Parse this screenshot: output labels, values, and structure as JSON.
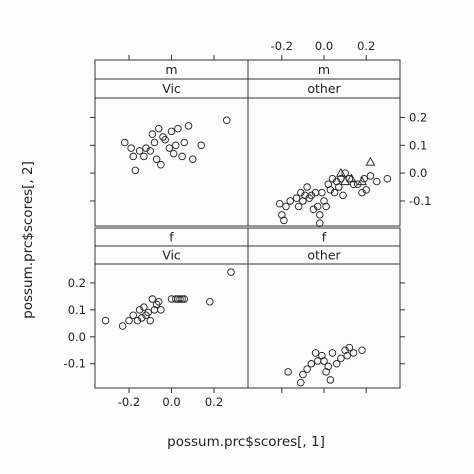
{
  "chart_data": {
    "type": "scatter",
    "xlabel": "possum.prc$scores[, 1]",
    "ylabel": "possum.prc$scores[, 2]",
    "xlim": [
      -0.36,
      0.36
    ],
    "ylim": [
      -0.19,
      0.27
    ],
    "x_ticks": [
      -0.2,
      0.0,
      0.2
    ],
    "x_tick_labels": [
      "-0.2",
      "0.0",
      "0.2"
    ],
    "y_ticks": [
      -0.1,
      0.0,
      0.1,
      0.2
    ],
    "y_tick_labels": [
      "-0.1",
      "0.0",
      "0.1",
      "0.2"
    ],
    "grid": false,
    "layout": "2x2 trellis",
    "panels": [
      {
        "strips": [
          "m",
          "Vic"
        ],
        "markers": [
          {
            "shape": "circle",
            "points": [
              [
                -0.22,
                0.11
              ],
              [
                -0.19,
                0.09
              ],
              [
                -0.18,
                0.06
              ],
              [
                -0.17,
                0.01
              ],
              [
                -0.15,
                0.08
              ],
              [
                -0.13,
                0.06
              ],
              [
                -0.12,
                0.09
              ],
              [
                -0.1,
                0.08
              ],
              [
                -0.09,
                0.14
              ],
              [
                -0.08,
                0.11
              ],
              [
                -0.07,
                0.05
              ],
              [
                -0.06,
                0.16
              ],
              [
                -0.05,
                0.03
              ],
              [
                -0.04,
                0.13
              ],
              [
                -0.03,
                0.12
              ],
              [
                -0.01,
                0.09
              ],
              [
                0.0,
                0.15
              ],
              [
                0.01,
                0.07
              ],
              [
                0.02,
                0.1
              ],
              [
                0.03,
                0.16
              ],
              [
                0.05,
                0.06
              ],
              [
                0.06,
                0.11
              ],
              [
                0.08,
                0.17
              ],
              [
                0.1,
                0.05
              ],
              [
                0.14,
                0.1
              ],
              [
                0.26,
                0.19
              ]
            ]
          }
        ]
      },
      {
        "strips": [
          "m",
          "other"
        ],
        "markers": [
          {
            "shape": "circle",
            "points": [
              [
                -0.21,
                -0.11
              ],
              [
                -0.2,
                -0.15
              ],
              [
                -0.19,
                -0.17
              ],
              [
                -0.18,
                -0.12
              ],
              [
                -0.16,
                -0.1
              ],
              [
                -0.13,
                -0.09
              ],
              [
                -0.12,
                -0.12
              ],
              [
                -0.11,
                -0.07
              ],
              [
                -0.1,
                -0.1
              ],
              [
                -0.09,
                -0.08
              ],
              [
                -0.08,
                -0.05
              ],
              [
                -0.07,
                -0.09
              ],
              [
                -0.06,
                -0.08
              ],
              [
                -0.05,
                -0.13
              ],
              [
                -0.04,
                -0.07
              ],
              [
                -0.03,
                -0.12
              ],
              [
                -0.02,
                -0.18
              ],
              [
                -0.02,
                -0.15
              ],
              [
                -0.01,
                -0.07
              ],
              [
                0.0,
                -0.1
              ],
              [
                0.01,
                -0.12
              ],
              [
                0.02,
                -0.04
              ],
              [
                0.03,
                -0.06
              ],
              [
                0.04,
                -0.02
              ],
              [
                0.05,
                -0.07
              ],
              [
                0.06,
                -0.03
              ],
              [
                0.07,
                -0.05
              ],
              [
                0.08,
                -0.02
              ],
              [
                0.09,
                -0.08
              ],
              [
                0.1,
                0.0
              ],
              [
                0.12,
                -0.02
              ],
              [
                0.14,
                -0.04
              ],
              [
                0.16,
                -0.04
              ],
              [
                0.18,
                -0.07
              ],
              [
                0.19,
                -0.02
              ],
              [
                0.2,
                -0.06
              ],
              [
                0.22,
                -0.01
              ],
              [
                0.25,
                -0.03
              ],
              [
                0.3,
                -0.02
              ]
            ]
          },
          {
            "shape": "triangle",
            "points": [
              [
                0.08,
                0.0
              ],
              [
                0.1,
                -0.03
              ],
              [
                0.13,
                -0.02
              ],
              [
                0.18,
                -0.03
              ],
              [
                0.22,
                0.04
              ]
            ]
          }
        ]
      },
      {
        "strips": [
          "f",
          "Vic"
        ],
        "markers": [
          {
            "shape": "circle",
            "points": [
              [
                -0.31,
                0.06
              ],
              [
                -0.23,
                0.04
              ],
              [
                -0.2,
                0.06
              ],
              [
                -0.18,
                0.08
              ],
              [
                -0.16,
                0.06
              ],
              [
                -0.15,
                0.1
              ],
              [
                -0.14,
                0.07
              ],
              [
                -0.13,
                0.11
              ],
              [
                -0.12,
                0.08
              ],
              [
                -0.11,
                0.09
              ],
              [
                -0.1,
                0.06
              ],
              [
                -0.09,
                0.14
              ],
              [
                -0.08,
                0.1
              ],
              [
                -0.07,
                0.12
              ],
              [
                -0.06,
                0.13
              ],
              [
                -0.05,
                0.1
              ],
              [
                0.0,
                0.14
              ],
              [
                0.02,
                0.14
              ],
              [
                0.03,
                0.14
              ],
              [
                0.04,
                0.14
              ],
              [
                0.05,
                0.14
              ],
              [
                0.06,
                0.14
              ],
              [
                0.18,
                0.13
              ],
              [
                0.28,
                0.24
              ]
            ]
          }
        ]
      },
      {
        "strips": [
          "f",
          "other"
        ],
        "markers": [
          {
            "shape": "circle",
            "points": [
              [
                -0.17,
                -0.13
              ],
              [
                -0.11,
                -0.17
              ],
              [
                -0.1,
                -0.14
              ],
              [
                -0.08,
                -0.12
              ],
              [
                -0.06,
                -0.1
              ],
              [
                -0.04,
                -0.06
              ],
              [
                -0.03,
                -0.09
              ],
              [
                -0.01,
                -0.07
              ],
              [
                0.0,
                -0.09
              ],
              [
                0.01,
                -0.13
              ],
              [
                0.02,
                -0.11
              ],
              [
                0.03,
                -0.16
              ],
              [
                0.04,
                -0.06
              ],
              [
                0.06,
                -0.1
              ],
              [
                0.08,
                -0.08
              ],
              [
                0.1,
                -0.05
              ],
              [
                0.11,
                -0.07
              ],
              [
                0.12,
                -0.04
              ],
              [
                0.14,
                -0.06
              ],
              [
                0.18,
                -0.05
              ]
            ]
          }
        ]
      }
    ]
  }
}
